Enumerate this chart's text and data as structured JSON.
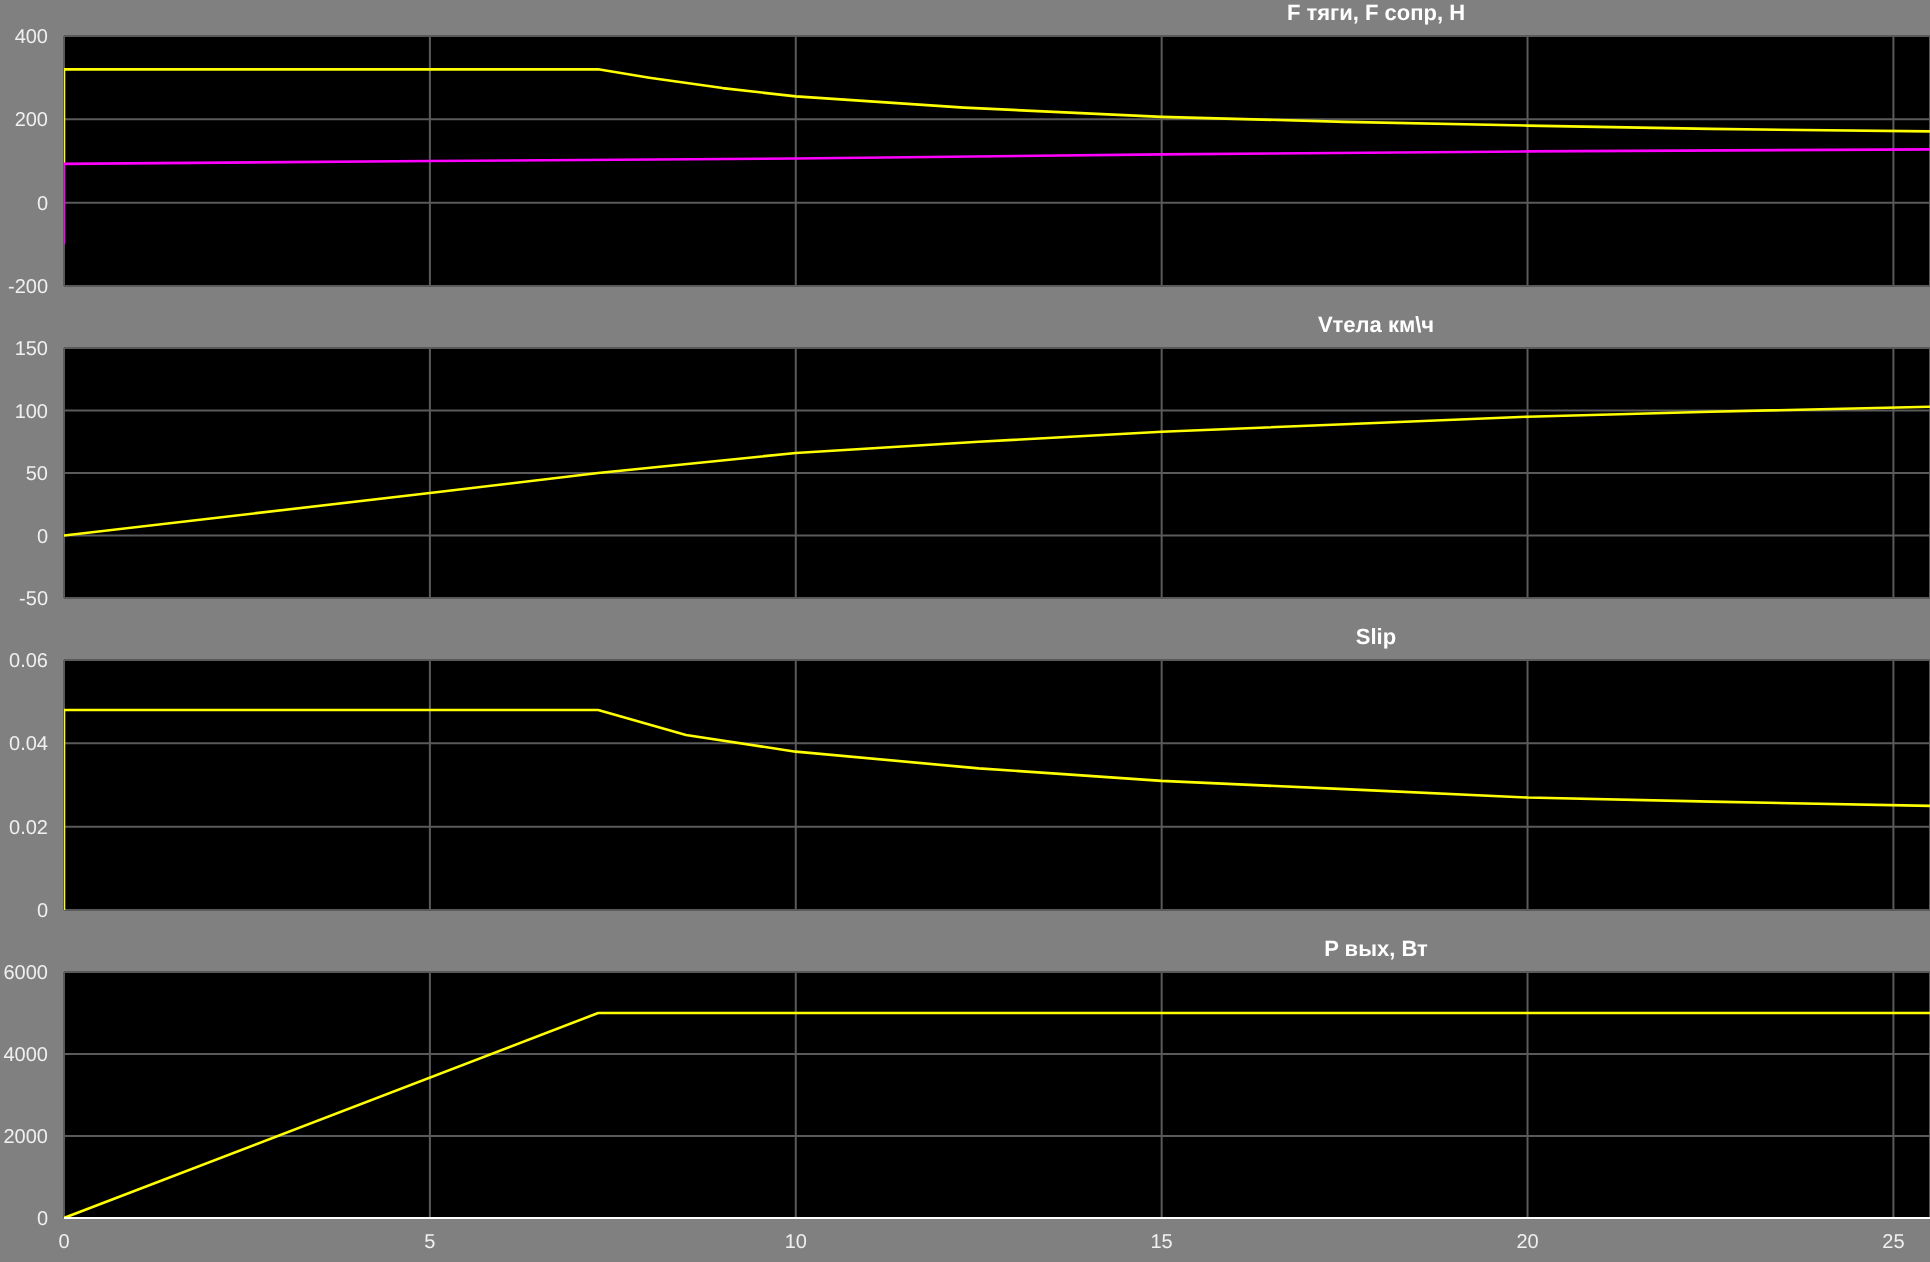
{
  "chart_data": [
    {
      "type": "line",
      "title": "F тяги, F сопр, Н",
      "xlim": [
        0,
        25.5
      ],
      "xticks": [
        0,
        5,
        10,
        15,
        20,
        25
      ],
      "ylim": [
        -200,
        400
      ],
      "yticks": [
        -200,
        0,
        200,
        400
      ],
      "grid": true,
      "tick_labels": "y",
      "series": [
        {
          "color": "#ffff00",
          "x": [
            0,
            0,
            7.3,
            8,
            9,
            10,
            12.3,
            15,
            17.5,
            20,
            22.5,
            25.5
          ],
          "values": [
            92,
            320,
            320,
            300,
            275,
            255,
            228,
            206,
            194,
            185,
            177,
            171
          ]
        },
        {
          "color": "#ff00ff",
          "x": [
            0,
            0,
            5,
            10,
            15,
            20,
            25.5
          ],
          "values": [
            -100,
            93,
            100,
            106,
            116,
            123,
            128
          ]
        }
      ]
    },
    {
      "type": "line",
      "title": "Vтела км\\ч",
      "xlim": [
        0,
        25.5
      ],
      "xticks": [
        0,
        5,
        10,
        15,
        20,
        25
      ],
      "ylim": [
        -50,
        150
      ],
      "yticks": [
        -50,
        0,
        50,
        100,
        150
      ],
      "grid": true,
      "tick_labels": "y",
      "series": [
        {
          "color": "#ffff00",
          "x": [
            0,
            5,
            7.3,
            10,
            12.5,
            15,
            17.5,
            20,
            22.5,
            25.5
          ],
          "values": [
            0,
            34,
            50,
            66,
            75,
            83,
            89,
            95,
            99,
            103
          ]
        }
      ]
    },
    {
      "type": "line",
      "title": "Slip",
      "xlim": [
        0,
        25.5
      ],
      "xticks": [
        0,
        5,
        10,
        15,
        20,
        25
      ],
      "ylim": [
        0,
        0.06
      ],
      "yticks": [
        0,
        0.02,
        0.04,
        0.06
      ],
      "grid": true,
      "tick_labels": "y",
      "series": [
        {
          "color": "#ffff00",
          "x": [
            0,
            0,
            7.3,
            8.5,
            10,
            12.5,
            15,
            17.5,
            20,
            22.5,
            25.5
          ],
          "values": [
            0,
            0.048,
            0.048,
            0.042,
            0.038,
            0.034,
            0.031,
            0.029,
            0.027,
            0.026,
            0.025
          ]
        }
      ]
    },
    {
      "type": "line",
      "title": "P вых, Вт",
      "xlim": [
        0,
        25.5
      ],
      "xticks": [
        0,
        5,
        10,
        15,
        20,
        25
      ],
      "ylim": [
        0,
        6000
      ],
      "yticks": [
        0,
        2000,
        4000,
        6000
      ],
      "grid": true,
      "series": [
        {
          "color": "#ffff00",
          "x": [
            0,
            7.3,
            25.5
          ],
          "values": [
            0,
            5000,
            5000
          ]
        }
      ]
    }
  ]
}
